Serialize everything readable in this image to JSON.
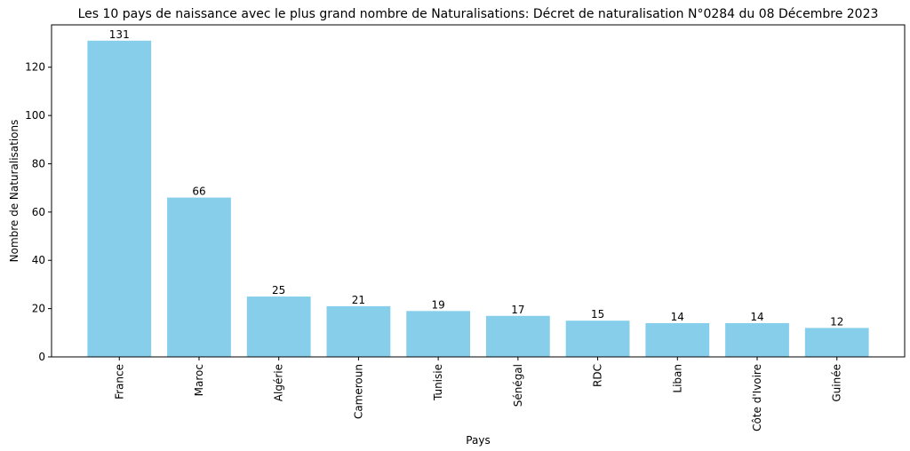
{
  "chart_data": {
    "type": "bar",
    "title": "Les 10 pays de naissance avec le plus grand nombre de Naturalisations: Décret de naturalisation N°0284 du 08 Décembre 2023",
    "x_label": "Pays",
    "y_label": "Nombre de Naturalisations",
    "categories": [
      "France",
      "Maroc",
      "Algérie",
      "Cameroun",
      "Tunisie",
      "Sénégal",
      "RDC",
      "Liban",
      "Côte d'Ivoire",
      "Guinée"
    ],
    "values": [
      131,
      66,
      25,
      21,
      19,
      17,
      15,
      14,
      14,
      12
    ],
    "color": "#87ceeb",
    "ylim": [
      0,
      137.55
    ],
    "yticks": [
      0,
      20,
      40,
      60,
      80,
      100,
      120
    ],
    "grid": false
  }
}
